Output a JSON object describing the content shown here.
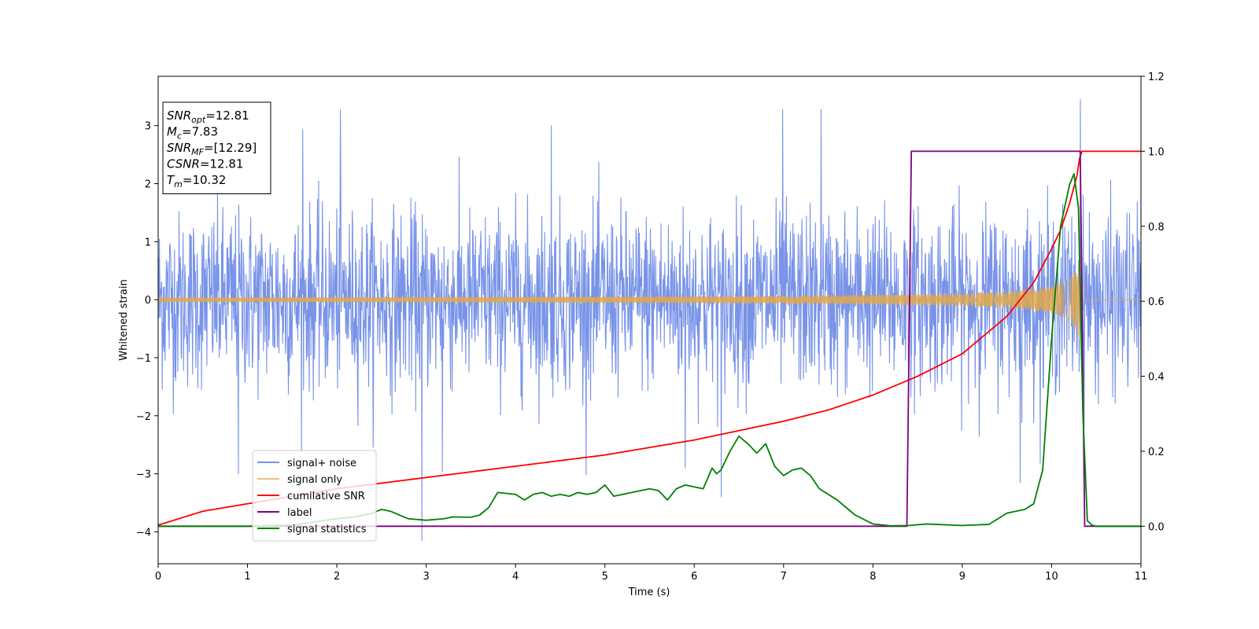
{
  "chart_data": {
    "type": "line",
    "xlabel": "Time (s)",
    "ylabel": "Whitened strain",
    "xlim": [
      0,
      11
    ],
    "ylim_left": [
      -4.55,
      3.85
    ],
    "ylim_right": [
      -0.1,
      1.2
    ],
    "x_ticks": [
      0,
      1,
      2,
      3,
      4,
      5,
      6,
      7,
      8,
      9,
      10,
      11
    ],
    "y_ticks_left": [
      -4,
      -3,
      -2,
      -1,
      0,
      1,
      2,
      3
    ],
    "y_ticks_right": [
      0.0,
      0.2,
      0.4,
      0.6,
      0.8,
      1.0,
      1.2
    ],
    "x_tick_labels": [
      "0",
      "1",
      "2",
      "3",
      "4",
      "5",
      "6",
      "7",
      "8",
      "9",
      "10",
      "11"
    ],
    "y_tick_labels_left": [
      "−4",
      "−3",
      "−2",
      "−1",
      "0",
      "1",
      "2",
      "3"
    ],
    "y_tick_labels_right": [
      "0.0",
      "0.2",
      "0.4",
      "0.6",
      "0.8",
      "1.0",
      "1.2"
    ],
    "grid": false,
    "legend_position": "lower-left",
    "info_box": {
      "lines": [
        {
          "main": "SNR",
          "sub": "opt",
          "value": "=12.81"
        },
        {
          "main": "M",
          "sub": "c",
          "value": "=7.83"
        },
        {
          "main": "SNR",
          "sub": "MF",
          "value": "=[12.29]"
        },
        {
          "main": "CSNR",
          "sub": "",
          "value": "=12.81"
        },
        {
          "main": "T",
          "sub": "m",
          "value": "=10.32"
        }
      ]
    },
    "series": [
      {
        "name": "signal+ noise",
        "axis": "left",
        "color": "#7893e8",
        "kind": "noise",
        "envelope_sigma": 0.75,
        "extremes": [
          {
            "x": 2.04,
            "y": 3.27
          },
          {
            "x": 6.99,
            "y": 3.28
          },
          {
            "x": 7.42,
            "y": 3.28
          },
          {
            "x": 10.32,
            "y": 3.45
          },
          {
            "x": 4.4,
            "y": 3.0
          },
          {
            "x": 1.62,
            "y": 2.93
          },
          {
            "x": 2.95,
            "y": -4.15
          },
          {
            "x": 0.9,
            "y": -3.0
          },
          {
            "x": 3.18,
            "y": -2.97
          },
          {
            "x": 6.3,
            "y": -3.4
          },
          {
            "x": 9.65,
            "y": -3.15
          },
          {
            "x": 5.9,
            "y": -2.9
          }
        ]
      },
      {
        "name": "signal only",
        "axis": "left",
        "color": "#e0a84a",
        "kind": "chirp",
        "amp_at_merger": 0.7,
        "t_merger": 10.32
      },
      {
        "name": "cumilative SNR",
        "axis": "right",
        "color": "#ff0000",
        "x": [
          0,
          0.5,
          1,
          2,
          3,
          4,
          5,
          6,
          7,
          7.5,
          8,
          8.5,
          9,
          9.5,
          9.8,
          10,
          10.1,
          10.2,
          10.3,
          10.32,
          11
        ],
        "y": [
          0.003,
          0.04,
          0.06,
          0.1,
          0.13,
          0.16,
          0.19,
          0.23,
          0.28,
          0.31,
          0.35,
          0.4,
          0.46,
          0.56,
          0.65,
          0.74,
          0.79,
          0.86,
          0.95,
          1.0,
          1.0
        ]
      },
      {
        "name": "label",
        "axis": "right",
        "color": "#800080",
        "x": [
          0,
          8.38,
          8.43,
          10.32,
          10.37,
          11
        ],
        "y": [
          0,
          0,
          1,
          1,
          0,
          0
        ]
      },
      {
        "name": "signal statistics",
        "axis": "right",
        "color": "#008000",
        "x": [
          0,
          1,
          1.5,
          2,
          2.2,
          2.4,
          2.5,
          2.6,
          2.8,
          3.0,
          3.2,
          3.3,
          3.5,
          3.6,
          3.7,
          3.8,
          4.0,
          4.1,
          4.2,
          4.3,
          4.4,
          4.5,
          4.6,
          4.7,
          4.8,
          4.9,
          5.0,
          5.1,
          5.2,
          5.3,
          5.4,
          5.5,
          5.6,
          5.7,
          5.8,
          5.9,
          6.0,
          6.1,
          6.2,
          6.25,
          6.3,
          6.4,
          6.5,
          6.6,
          6.7,
          6.8,
          6.9,
          7.0,
          7.1,
          7.2,
          7.3,
          7.4,
          7.5,
          7.6,
          7.8,
          8.0,
          8.2,
          8.4,
          8.6,
          9.0,
          9.3,
          9.5,
          9.6,
          9.7,
          9.8,
          9.9,
          10.0,
          10.1,
          10.2,
          10.25,
          10.3,
          10.35,
          10.4,
          10.45,
          10.5,
          10.7,
          11
        ],
        "y": [
          0.0,
          0.0,
          0.003,
          0.02,
          0.025,
          0.035,
          0.045,
          0.04,
          0.02,
          0.016,
          0.02,
          0.025,
          0.024,
          0.03,
          0.05,
          0.09,
          0.085,
          0.07,
          0.085,
          0.09,
          0.08,
          0.085,
          0.08,
          0.09,
          0.085,
          0.09,
          0.11,
          0.08,
          0.085,
          0.09,
          0.095,
          0.1,
          0.095,
          0.07,
          0.1,
          0.11,
          0.105,
          0.1,
          0.155,
          0.14,
          0.15,
          0.2,
          0.24,
          0.22,
          0.195,
          0.22,
          0.16,
          0.135,
          0.15,
          0.155,
          0.135,
          0.1,
          0.085,
          0.07,
          0.03,
          0.006,
          0.001,
          0.002,
          0.006,
          0.002,
          0.005,
          0.035,
          0.04,
          0.045,
          0.06,
          0.15,
          0.5,
          0.8,
          0.91,
          0.94,
          0.85,
          0.3,
          0.015,
          0.003,
          0.0,
          0.0,
          0.0
        ]
      }
    ]
  }
}
